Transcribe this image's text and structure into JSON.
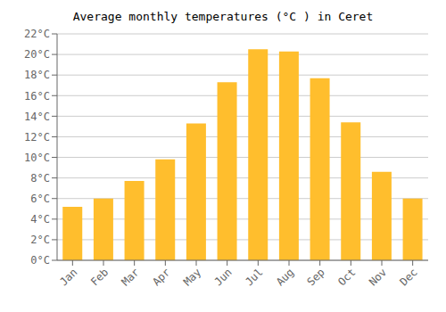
{
  "chart_data": {
    "type": "bar",
    "title": "Average monthly temperatures (°C ) in Ceret",
    "categories": [
      "Jan",
      "Feb",
      "Mar",
      "Apr",
      "May",
      "Jun",
      "Jul",
      "Aug",
      "Sep",
      "Oct",
      "Nov",
      "Dec"
    ],
    "values": [
      5.2,
      6.0,
      7.7,
      9.8,
      13.3,
      17.3,
      20.5,
      20.3,
      17.7,
      13.4,
      8.6,
      6.0
    ],
    "color": "#FFBE2D",
    "ylim": [
      0,
      22
    ],
    "yticks": [
      {
        "value": 0,
        "label": "0°C"
      },
      {
        "value": 2,
        "label": "2°C"
      },
      {
        "value": 4,
        "label": "4°C"
      },
      {
        "value": 6,
        "label": "6°C"
      },
      {
        "value": 8,
        "label": "8°C"
      },
      {
        "value": 10,
        "label": "10°C"
      },
      {
        "value": 12,
        "label": "12°C"
      },
      {
        "value": 14,
        "label": "14°C"
      },
      {
        "value": 16,
        "label": "16°C"
      },
      {
        "value": 18,
        "label": "18°C"
      },
      {
        "value": 20,
        "label": "20°C"
      },
      {
        "value": 22,
        "label": "22°C"
      }
    ],
    "grid": true
  }
}
